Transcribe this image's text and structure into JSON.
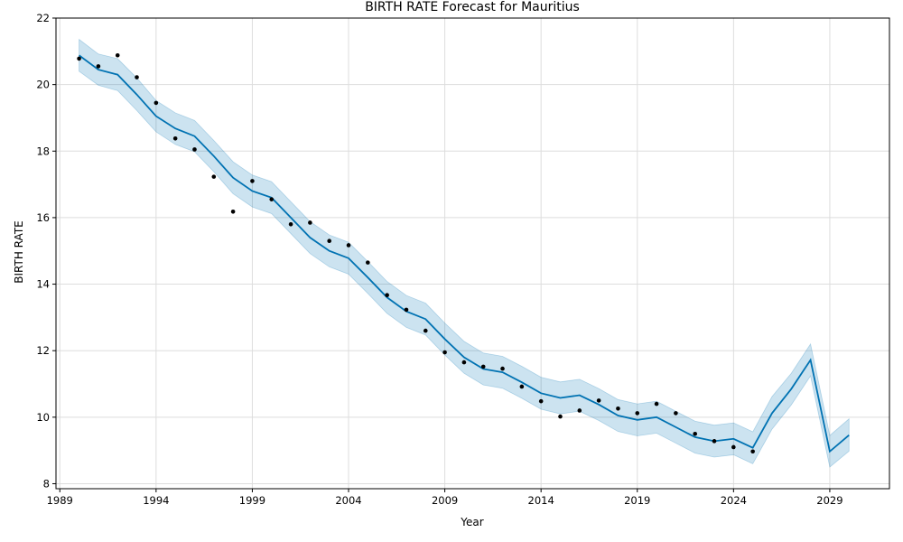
{
  "chart_data": {
    "type": "line",
    "title": "BIRTH RATE Forecast for Mauritius",
    "xlabel": "Year",
    "ylabel": "BIRTH RATE",
    "xlim": [
      1988.8,
      2032.1
    ],
    "ylim": [
      7.85,
      22
    ],
    "grid": true,
    "x_ticks": [
      "1989",
      "1994",
      "1999",
      "2004",
      "2009",
      "2014",
      "2019",
      "2024",
      "2029"
    ],
    "y_ticks": [
      "8",
      "10",
      "12",
      "14",
      "16",
      "18",
      "20",
      "22"
    ],
    "colors": {
      "forecast_line": "#0072B2",
      "interval_fill": "#0072B2",
      "observed_points": "#000000",
      "grid": "#dddddd"
    },
    "observed": {
      "x": [
        1990,
        1991,
        1992,
        1993,
        1994,
        1995,
        1996,
        1997,
        1998,
        1999,
        2000,
        2001,
        2002,
        2003,
        2004,
        2005,
        2006,
        2007,
        2008,
        2009,
        2010,
        2011,
        2012,
        2013,
        2014,
        2015,
        2016,
        2017,
        2018,
        2019,
        2020,
        2021,
        2022,
        2023,
        2024,
        2025
      ],
      "y": [
        20.78,
        20.55,
        20.88,
        20.22,
        19.45,
        18.38,
        18.05,
        17.23,
        16.18,
        17.1,
        16.55,
        15.8,
        15.85,
        15.3,
        15.17,
        14.65,
        13.67,
        13.23,
        12.6,
        11.95,
        11.65,
        11.52,
        11.46,
        10.92,
        10.48,
        10.02,
        10.2,
        10.5,
        10.26,
        10.12,
        10.4,
        10.12,
        9.5,
        9.28,
        9.1,
        8.97
      ]
    },
    "forecast": {
      "x": [
        1990,
        1991,
        1992,
        1993,
        1994,
        1995,
        1996,
        1997,
        1998,
        1999,
        2000,
        2001,
        2002,
        2003,
        2004,
        2005,
        2006,
        2007,
        2008,
        2009,
        2010,
        2011,
        2012,
        2013,
        2014,
        2015,
        2016,
        2017,
        2018,
        2019,
        2020,
        2021,
        2022,
        2023,
        2024,
        2025,
        2026,
        2027,
        2028,
        2029,
        2030
      ],
      "yhat": [
        20.88,
        20.45,
        20.3,
        19.7,
        19.05,
        18.68,
        18.45,
        17.85,
        17.2,
        16.8,
        16.6,
        16.0,
        15.4,
        15.0,
        14.78,
        14.2,
        13.6,
        13.18,
        12.95,
        12.35,
        11.8,
        11.45,
        11.35,
        11.05,
        10.72,
        10.58,
        10.66,
        10.38,
        10.05,
        9.92,
        10.0,
        9.7,
        9.4,
        9.28,
        9.35,
        9.08,
        10.12,
        10.85,
        11.72,
        8.97,
        9.46
      ],
      "yhat_upper": [
        21.36,
        20.92,
        20.78,
        20.2,
        19.52,
        19.15,
        18.92,
        18.32,
        17.68,
        17.28,
        17.08,
        16.48,
        15.88,
        15.48,
        15.26,
        14.68,
        14.08,
        13.66,
        13.43,
        12.83,
        12.28,
        11.93,
        11.83,
        11.53,
        11.2,
        11.06,
        11.14,
        10.86,
        10.53,
        10.4,
        10.48,
        10.18,
        9.88,
        9.76,
        9.83,
        9.56,
        10.62,
        11.32,
        12.2,
        9.45,
        9.95
      ],
      "yhat_lower": [
        20.4,
        19.98,
        19.82,
        19.22,
        18.58,
        18.2,
        17.98,
        17.38,
        16.72,
        16.32,
        16.12,
        15.52,
        14.92,
        14.52,
        14.3,
        13.72,
        13.12,
        12.7,
        12.47,
        11.87,
        11.32,
        10.97,
        10.87,
        10.57,
        10.24,
        10.1,
        10.18,
        9.9,
        9.57,
        9.44,
        9.52,
        9.22,
        8.92,
        8.8,
        8.87,
        8.6,
        9.64,
        10.37,
        11.24,
        8.5,
        8.98
      ]
    }
  }
}
